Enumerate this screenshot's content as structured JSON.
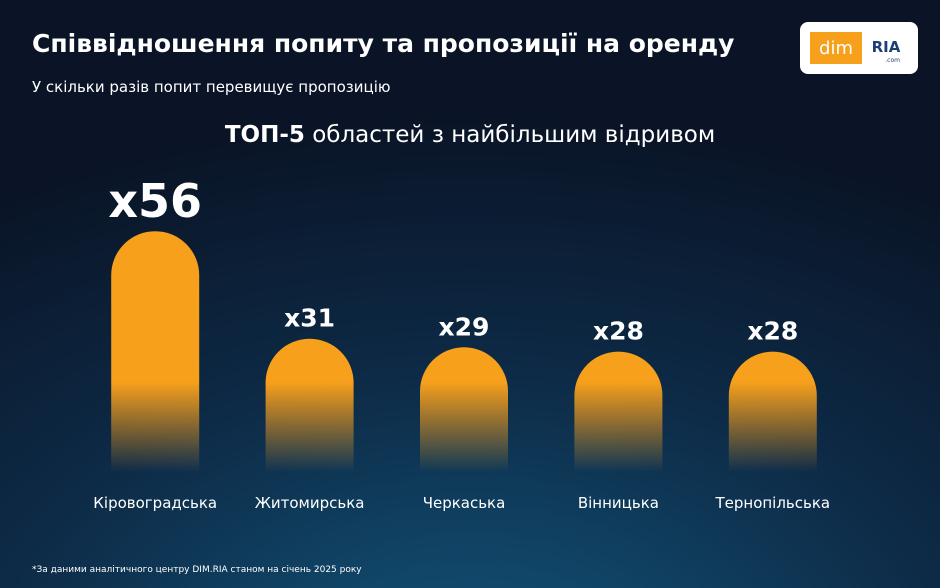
{
  "chart_data": {
    "type": "bar",
    "title": "Співвідношення попиту та пропозиції на оренду",
    "subtitle": "У скільки разів попит перевищує пропозицію",
    "heading": {
      "bold": "ТОП-5",
      "rest": "областей з найбільшим відривом"
    },
    "categories": [
      "Кіровоградська",
      "Житомирська",
      "Черкаська",
      "Вінницька",
      "Тернопільська"
    ],
    "values": [
      56,
      31,
      29,
      28,
      28
    ],
    "value_labels": [
      "x56",
      "x31",
      "x29",
      "x28",
      "x28"
    ],
    "color": "#f7a01c"
  },
  "note": "*За даними аналітичного центру DIM.RIA станом на січень 2025 року",
  "logo": {
    "left": "dim",
    "right": "RIA",
    "suffix": ".com"
  }
}
